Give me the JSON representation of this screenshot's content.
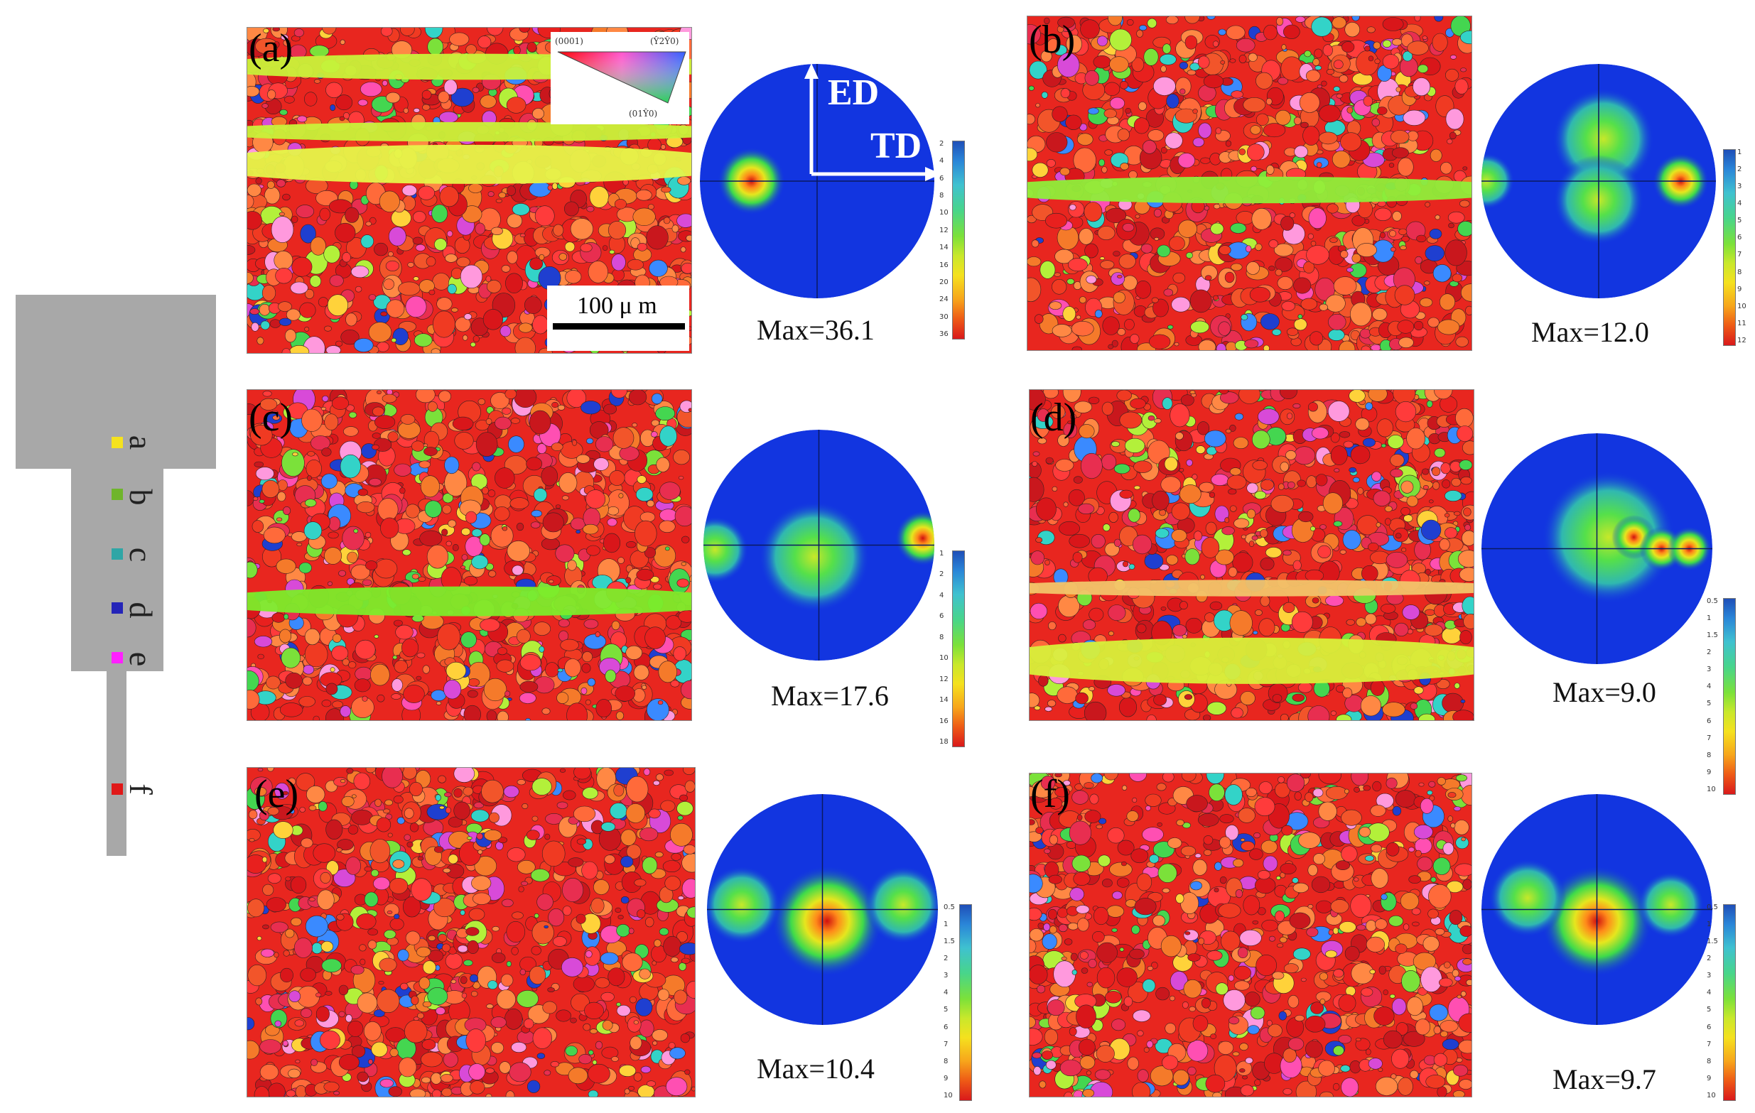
{
  "schematic": {
    "points": [
      {
        "label": "a",
        "color": "#f5e21e"
      },
      {
        "label": "b",
        "color": "#6fb52b"
      },
      {
        "label": "c",
        "color": "#2fa6a6"
      },
      {
        "label": "d",
        "color": "#2424b8"
      },
      {
        "label": "e",
        "color": "#ff20ff"
      },
      {
        "label": "f",
        "color": "#e01818"
      }
    ]
  },
  "panels": [
    {
      "label": "(a)",
      "max": "Max=36.1",
      "ticks": [
        "2",
        "4",
        "6",
        "8",
        "10",
        "12",
        "14",
        "16",
        "20",
        "24",
        "30",
        "36"
      ]
    },
    {
      "label": "(b)",
      "max": "Max=12.0",
      "ticks": [
        "1",
        "2",
        "3",
        "4",
        "5",
        "6",
        "7",
        "8",
        "9",
        "10",
        "11",
        "12"
      ]
    },
    {
      "label": "(c)",
      "max": "Max=17.6",
      "ticks": [
        "1",
        "2",
        "4",
        "6",
        "8",
        "10",
        "12",
        "14",
        "16",
        "18"
      ]
    },
    {
      "label": "(d)",
      "max": "Max=9.0",
      "ticks": [
        "0.5",
        "1",
        "1.5",
        "2",
        "3",
        "4",
        "5",
        "6",
        "7",
        "8",
        "9",
        "10"
      ]
    },
    {
      "label": "(e)",
      "max": "Max=10.4",
      "ticks": [
        "0.5",
        "1",
        "1.5",
        "2",
        "3",
        "4",
        "5",
        "6",
        "7",
        "8",
        "9",
        "10"
      ]
    },
    {
      "label": "(f)",
      "max": "Max=9.7",
      "ticks": [
        "0.5",
        "1",
        "1.5",
        "2",
        "3",
        "4",
        "5",
        "6",
        "7",
        "8",
        "9",
        "10"
      ]
    }
  ],
  "ipf_legend": {
    "corner_0001": "(0001)",
    "corner_2110": "(Ŷ2Ŷ0)",
    "corner_0110": "(01Ŷ0)"
  },
  "scale_bar": "100 μ m",
  "axes": {
    "ed": "ED",
    "td": "TD"
  }
}
